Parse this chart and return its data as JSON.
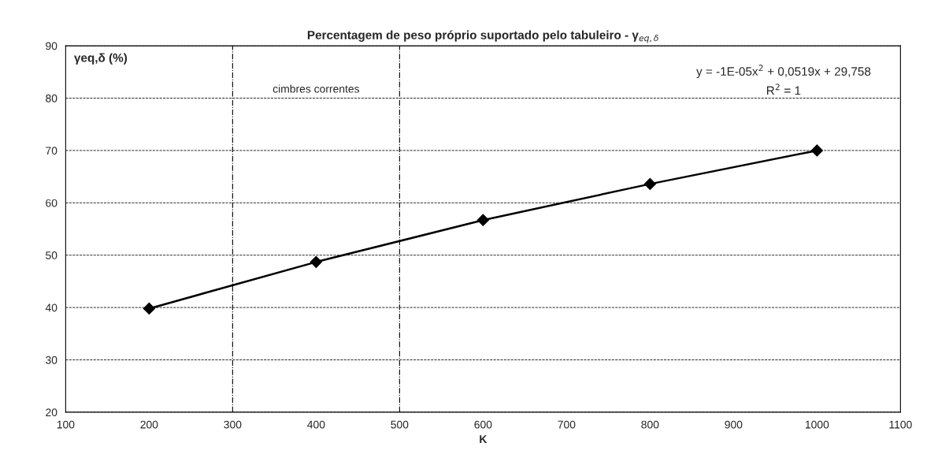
{
  "chart_data": {
    "type": "line",
    "title": "Percentagem de peso próprio suportado pelo tabuleiro - γ$_{eq,δ}$",
    "xlabel": "K",
    "ylabel": "γeq,δ (%)",
    "x": [
      200,
      400,
      600,
      800,
      1000
    ],
    "series": [
      {
        "color": "#000000",
        "values": [
          39.8,
          48.7,
          56.7,
          63.6,
          70.0
        ]
      }
    ],
    "marker": "diamond",
    "line_style": "solid",
    "xlim": [
      100,
      1100
    ],
    "xticks": [
      100,
      200,
      300,
      400,
      500,
      600,
      700,
      800,
      900,
      1000,
      1100
    ],
    "ylim": [
      20,
      90
    ],
    "yticks": [
      20,
      30,
      40,
      50,
      60,
      70,
      80,
      90
    ],
    "grid": "y",
    "legend": false,
    "ref_lines": [
      {
        "axis": "x",
        "value": 300,
        "color": "#000000",
        "line_style": "dashdot"
      },
      {
        "axis": "x",
        "value": 500,
        "color": "#000000",
        "line_style": "dashdot"
      }
    ],
    "annotations": [
      "cimbres correntes",
      "y = -1E-05x$^{2}$ + 0,0519x + 29,758",
      "R$^{2}$ = 1"
    ]
  }
}
